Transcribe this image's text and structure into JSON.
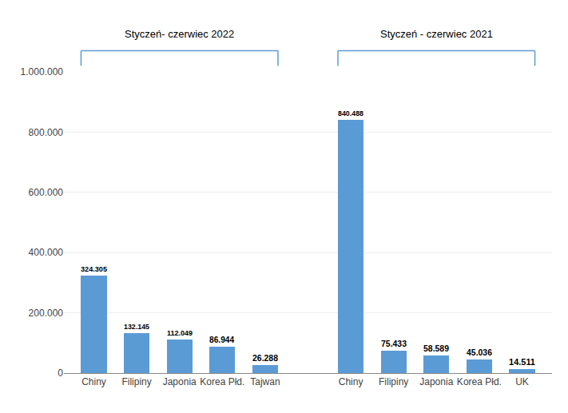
{
  "chart_data": {
    "type": "bar",
    "categories": [
      "Chiny",
      "Filipiny",
      "Japonia",
      "Korea Płd.",
      "Tajwan",
      null,
      "Chiny",
      "Filipiny",
      "Japonia",
      "Korea Płd.",
      "UK"
    ],
    "values": [
      324305,
      132145,
      112049,
      86944,
      26288,
      null,
      840488,
      75433,
      58589,
      45036,
      14511
    ],
    "value_labels": [
      "324.305",
      "132.145",
      "112.049",
      "86.944",
      "26.288",
      null,
      "840.488",
      "75.433",
      "58.589",
      "45.036",
      "14.511"
    ],
    "data_labels": true,
    "color": "#5B9BD5",
    "annotations": [
      "Styczeń- czerwiec 2022",
      "Styczeń - czerwiec 2021"
    ],
    "ylim": [
      0,
      1000000
    ],
    "yticks": [
      0,
      {
        "value": 200000,
        "label": "200.000"
      },
      {
        "value": 400000,
        "label": "400.000"
      },
      {
        "value": 600000,
        "label": "600.000"
      },
      {
        "value": 800000,
        "label": "800.000"
      },
      {
        "value": 1000000,
        "label": "1.000.000"
      }
    ],
    "grid": true
  }
}
